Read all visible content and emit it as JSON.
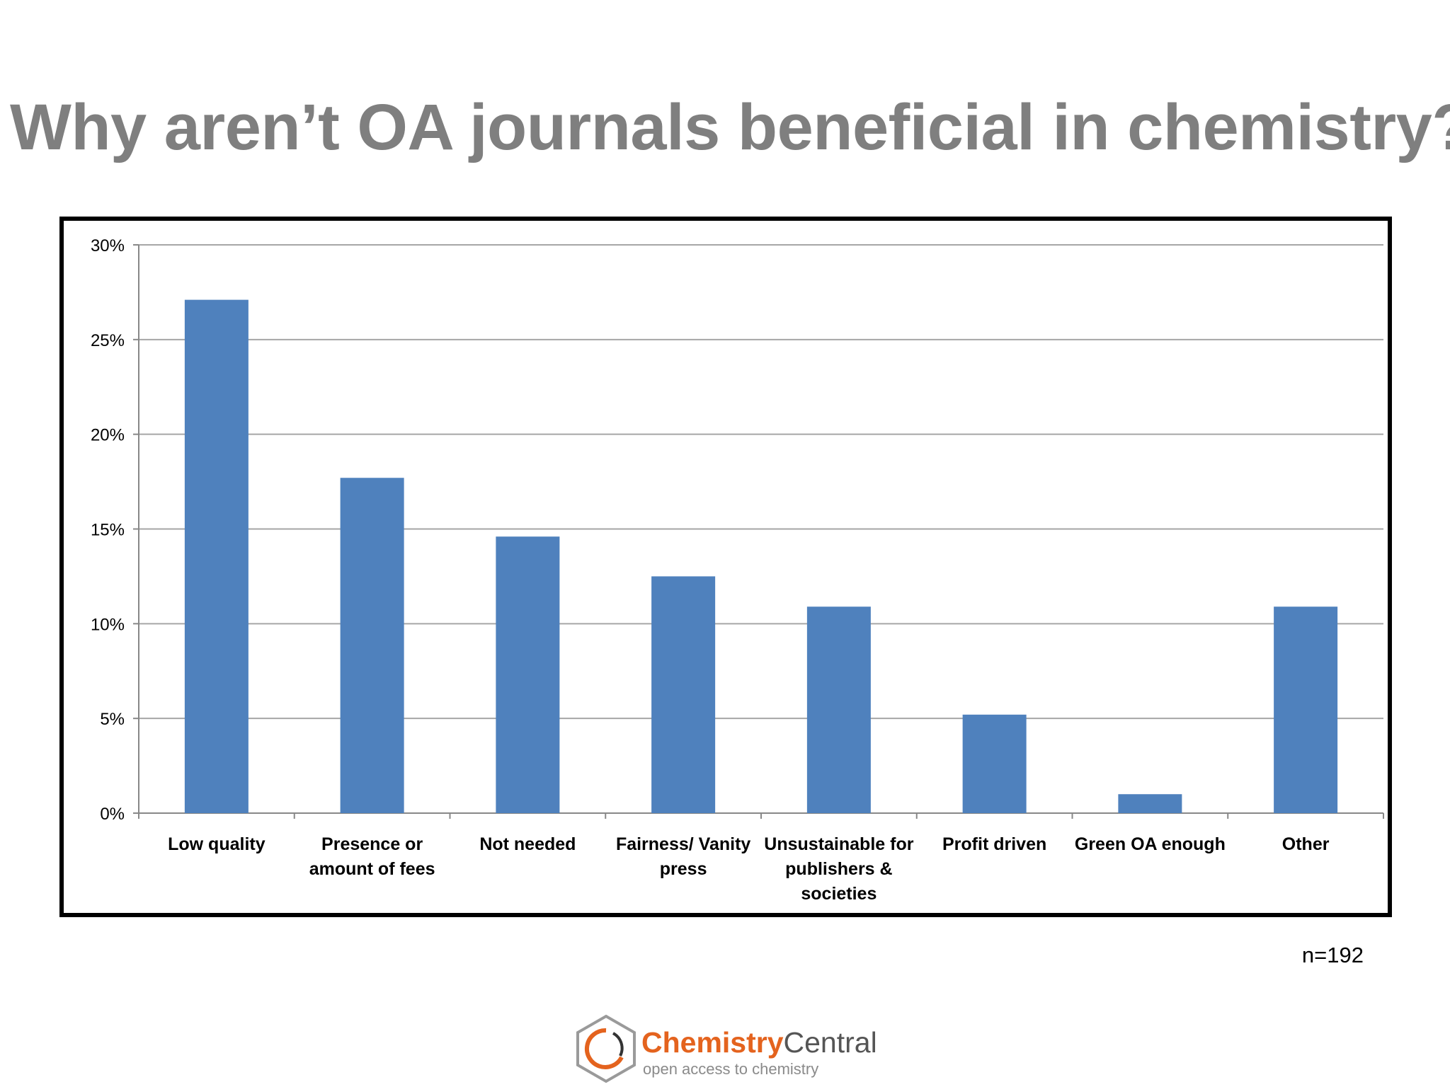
{
  "title": "Why aren’t OA journals beneficial in chemistry?",
  "note": "n=192",
  "logo": {
    "name_part1": "Chemistry",
    "name_part2": "Central",
    "tagline": "open access to chemistry"
  },
  "colors": {
    "bar": "#4f81bd",
    "title": "#7f7f7f",
    "grid": "#a6a6a6",
    "logo_accent": "#e4631e"
  },
  "chart_data": {
    "type": "bar",
    "categories": [
      "Low quality",
      "Presence or amount of fees",
      "Not needed",
      "Fairness/ Vanity press",
      "Unsustainable for publishers & societies",
      "Profit driven",
      "Green OA enough",
      "Other"
    ],
    "category_lines": [
      [
        "Low quality"
      ],
      [
        "Presence or",
        "amount of fees"
      ],
      [
        "Not needed"
      ],
      [
        "Fairness/ Vanity",
        "press"
      ],
      [
        "Unsustainable for",
        "publishers &",
        "societies"
      ],
      [
        "Profit driven"
      ],
      [
        "Green OA enough"
      ],
      [
        "Other"
      ]
    ],
    "values": [
      27.1,
      17.7,
      14.6,
      12.5,
      10.9,
      5.2,
      1.0,
      10.9
    ],
    "ylim": [
      0,
      30
    ],
    "yticks": [
      0,
      5,
      10,
      15,
      20,
      25,
      30
    ],
    "ytick_labels": [
      "0%",
      "5%",
      "10%",
      "15%",
      "20%",
      "25%",
      "30%"
    ],
    "grid": true,
    "xlabel": "",
    "ylabel": ""
  }
}
